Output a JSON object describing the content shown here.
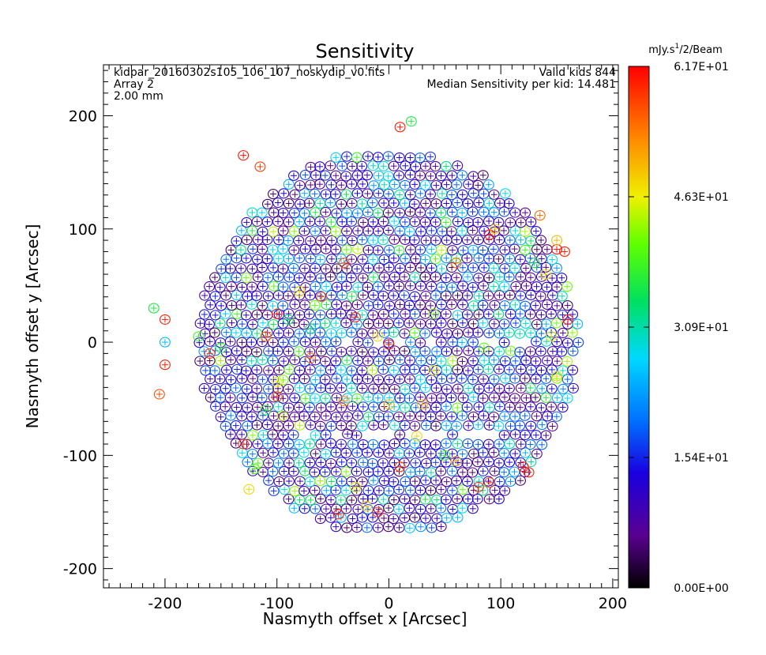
{
  "chart_data": {
    "type": "scatter",
    "title": "Sensitivity",
    "xlabel": "Nasmyth offset x [Arcsec]",
    "ylabel": "Nasmyth offset y [Arcsec]",
    "xlim": [
      -255,
      205
    ],
    "ylim": [
      -217,
      245
    ],
    "xticks": [
      -200,
      -100,
      0,
      100,
      200
    ],
    "yticks": [
      -200,
      -100,
      0,
      100,
      200
    ],
    "grid": false,
    "info_left": [
      "kidpar_20160302s105_106_107_noskydip_v0.fits",
      "Array 2",
      "2.00 mm"
    ],
    "info_right": [
      "Valid kids 844",
      "Median Sensitivity per kid: 14.481"
    ],
    "colorbar": {
      "title": "mJy.s^1/2/Beam",
      "min": 0.0,
      "max": 61.7,
      "ticks": [
        "0.00E+00",
        "1.54E+01",
        "3.09E+01",
        "4.63E+01",
        "6.17E+01"
      ],
      "colormap": "rainbow"
    },
    "detector_pattern": {
      "n_kids": 844,
      "radius_arcsec": 170,
      "pitch_arcsec": 9.4,
      "median_sensitivity": 14.481,
      "marker": "circle-with-plus"
    },
    "points": [
      [
        -130,
        165,
        61
      ],
      [
        -115,
        155,
        58
      ],
      [
        10,
        190,
        60
      ],
      [
        20,
        195,
        36
      ],
      [
        135,
        112,
        55
      ],
      [
        150,
        82,
        61
      ],
      [
        157,
        80,
        60
      ],
      [
        160,
        20,
        60
      ],
      [
        -100,
        25,
        60
      ],
      [
        -30,
        22,
        60
      ],
      [
        0,
        -2,
        60
      ],
      [
        -60,
        40,
        55
      ],
      [
        -40,
        -52,
        52
      ],
      [
        0,
        -55,
        50
      ],
      [
        30,
        -55,
        50
      ],
      [
        -10,
        5,
        48
      ],
      [
        -160,
        -10,
        58
      ],
      [
        -100,
        -48,
        57
      ],
      [
        -130,
        -90,
        58
      ],
      [
        -45,
        -152,
        60
      ],
      [
        -10,
        -150,
        58
      ],
      [
        90,
        -124,
        57
      ],
      [
        80,
        -128,
        59
      ],
      [
        120,
        -110,
        60
      ],
      [
        -205,
        -46,
        57
      ],
      [
        -200,
        -20,
        60
      ],
      [
        -200,
        20,
        60
      ],
      [
        -70,
        -14,
        55
      ],
      [
        125,
        -115,
        60
      ],
      [
        -170,
        5,
        38
      ],
      [
        -210,
        30,
        36
      ],
      [
        -150,
        -5,
        38
      ],
      [
        -125,
        -130,
        48
      ],
      [
        -200,
        0,
        25
      ],
      [
        -100,
        -35,
        46
      ],
      [
        -95,
        -65,
        45
      ],
      [
        -110,
        5,
        55
      ],
      [
        50,
        -100,
        38
      ],
      [
        -110,
        -60,
        36
      ],
      [
        40,
        -25,
        45
      ],
      [
        85,
        -5,
        40
      ],
      [
        145,
        5,
        45
      ],
      [
        150,
        -30,
        48
      ],
      [
        -40,
        70,
        56
      ],
      [
        60,
        70,
        55
      ],
      [
        90,
        95,
        60
      ],
      [
        150,
        90,
        50
      ],
      [
        130,
        70,
        36
      ],
      [
        -30,
        -128,
        45
      ],
      [
        -20,
        -145,
        50
      ],
      [
        40,
        25,
        42
      ],
      [
        -90,
        20,
        34
      ],
      [
        -70,
        12,
        33
      ],
      [
        -120,
        -112,
        40
      ],
      [
        140,
        60,
        47
      ],
      [
        95,
        100,
        48
      ],
      [
        -80,
        45,
        48
      ],
      [
        10,
        -110,
        57
      ],
      [
        25,
        -83,
        48
      ],
      [
        60,
        -105,
        52
      ]
    ]
  }
}
